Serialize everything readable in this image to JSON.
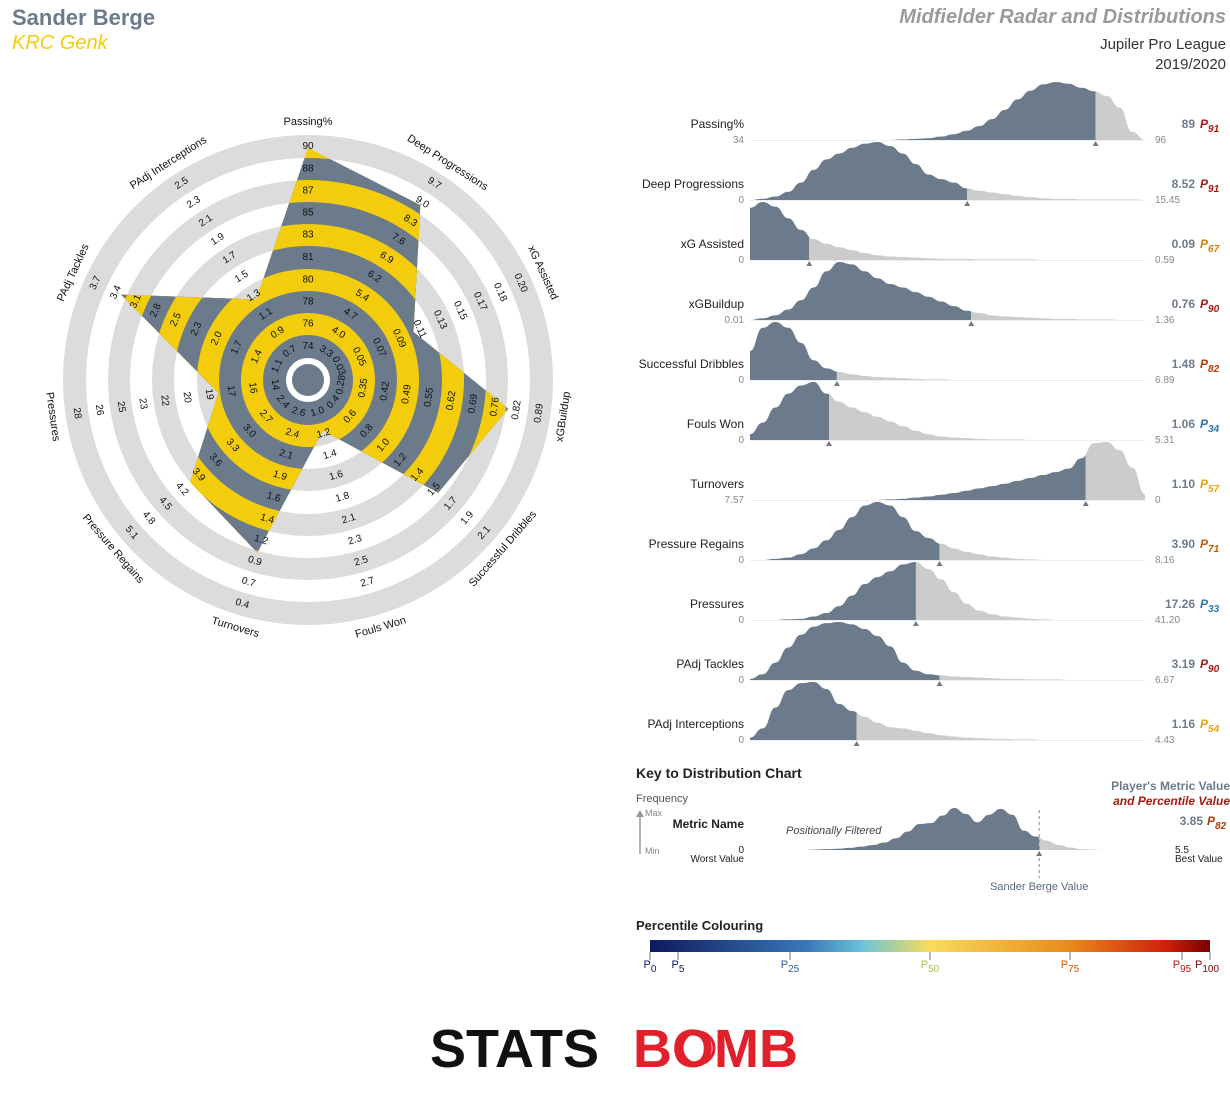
{
  "header": {
    "player_name": "Sander Berge",
    "team_name": "KRC Genk",
    "report_title": "Midfielder Radar and Distributions",
    "league": "Jupiler Pro League",
    "season": "2019/2020"
  },
  "colors": {
    "player_name": "#6b7b8c",
    "team": "#f3cc0c",
    "title": "#9a9a9a",
    "radar_band_gray": "#dcdcdc",
    "radar_yellow": "#f3cc0c",
    "radar_slate": "#6b7b8c",
    "dist_dark": "#6b7b8c",
    "dist_light": "#cccccc",
    "percentile_low": "#0d1a5e",
    "percentile_mid": "#f7dc5c",
    "percentile_high": "#7a0000",
    "logo_black": "#111111",
    "logo_red": "#e0202a"
  },
  "chart_data": [
    {
      "type": "radar",
      "title": "",
      "axes": [
        {
          "name": "Passing%",
          "ticks": [
            "74",
            "76",
            "78",
            "80",
            "81",
            "83",
            "85",
            "87",
            "88",
            "90"
          ],
          "value": 89,
          "scale_min": 72.5,
          "scale_max": 90
        },
        {
          "name": "Deep Progressions",
          "ticks": [
            "3.3",
            "4.0",
            "4.7",
            "5.4",
            "6.2",
            "6.9",
            "7.6",
            "8.3",
            "9.0",
            "9.7"
          ],
          "value": 8.52,
          "scale_min": 2.6,
          "scale_max": 9.7
        },
        {
          "name": "xG Assisted",
          "ticks": [
            "0.03",
            "0.05",
            "0.07",
            "0.09",
            "0.11",
            "0.13",
            "0.15",
            "0.17",
            "0.18",
            "0.20"
          ],
          "value": 0.09,
          "scale_min": 0.01,
          "scale_max": 0.2
        },
        {
          "name": "xGBuildup",
          "ticks": [
            "0.28",
            "0.35",
            "0.42",
            "0.49",
            "0.55",
            "0.62",
            "0.69",
            "0.76",
            "0.82",
            "0.89"
          ],
          "value": 0.76,
          "scale_min": 0.21,
          "scale_max": 0.89
        },
        {
          "name": "Successful Dribbles",
          "ticks": [
            "0.4",
            "0.6",
            "0.8",
            "1.0",
            "1.2",
            "1.4",
            "1.5",
            "1.7",
            "1.9",
            "2.1"
          ],
          "value": 1.48,
          "scale_min": 0.2,
          "scale_max": 2.1
        },
        {
          "name": "Fouls Won",
          "ticks": [
            "1.0",
            "1.2",
            "1.4",
            "1.6",
            "1.8",
            "2.1",
            "2.3",
            "2.5",
            "2.7"
          ],
          "value": 1.06,
          "scale_min": 0.8,
          "scale_max": 2.7
        },
        {
          "name": "Turnovers",
          "ticks": [
            "2.6",
            "2.4",
            "2.1",
            "1.9",
            "1.6",
            "1.4",
            "1.2",
            "0.9",
            "0.7",
            "0.4"
          ],
          "value": 1.1,
          "scale_min": 2.8,
          "scale_max": 0.4
        },
        {
          "name": "Pressure Regains",
          "ticks": [
            "2.4",
            "2.7",
            "3.0",
            "3.3",
            "3.6",
            "3.9",
            "4.2",
            "4.5",
            "4.8",
            "5.1"
          ],
          "value": 3.9,
          "scale_min": 2.1,
          "scale_max": 5.1
        },
        {
          "name": "Pressures",
          "ticks": [
            "14",
            "16",
            "17",
            "19",
            "20",
            "22",
            "23",
            "25",
            "26",
            "28"
          ],
          "value": 17.26,
          "scale_min": 12.5,
          "scale_max": 28
        },
        {
          "name": "PAdj Tackles",
          "ticks": [
            "1.1",
            "1.4",
            "1.7",
            "2.0",
            "2.3",
            "2.5",
            "2.8",
            "3.1",
            "3.4",
            "3.7"
          ],
          "value": 3.19,
          "scale_min": 0.8,
          "scale_max": 3.7
        },
        {
          "name": "PAdj Interceptions",
          "ticks": [
            "0.7",
            "0.9",
            "1.1",
            "1.3",
            "1.5",
            "1.7",
            "1.9",
            "2.1",
            "2.3",
            "2.5"
          ],
          "value": 1.16,
          "scale_min": 0.5,
          "scale_max": 2.5
        }
      ]
    },
    {
      "type": "area",
      "title": "",
      "metrics": [
        {
          "name": "Passing%",
          "min_label": "34",
          "max_label": "96",
          "value_label": "89",
          "percentile": "91",
          "pct_color": "#a41a0c",
          "marker": 0.875,
          "curve": [
            0,
            0,
            0,
            0,
            0,
            0,
            0,
            0,
            0,
            0,
            0,
            0,
            0.01,
            0.02,
            0.03,
            0.06,
            0.1,
            0.16,
            0.24,
            0.36,
            0.52,
            0.7,
            0.85,
            0.96,
            1.0,
            0.97,
            0.9,
            0.84,
            0.76,
            0.56,
            0.14,
            0.0
          ]
        },
        {
          "name": "Deep Progressions",
          "min_label": "0",
          "max_label": "15.45",
          "value_label": "8.52",
          "percentile": "91",
          "pct_color": "#a41a0c",
          "marker": 0.55,
          "curve": [
            0,
            0.02,
            0.06,
            0.14,
            0.3,
            0.52,
            0.7,
            0.8,
            0.9,
            0.97,
            1.0,
            0.93,
            0.8,
            0.62,
            0.44,
            0.36,
            0.3,
            0.2,
            0.16,
            0.13,
            0.1,
            0.07,
            0.05,
            0.03,
            0.02,
            0.02,
            0.01,
            0.01,
            0.01,
            0.01,
            0.01,
            0.0
          ]
        },
        {
          "name": "xG Assisted",
          "min_label": "0",
          "max_label": "0.59",
          "value_label": "0.09",
          "percentile": "67",
          "pct_color": "#d07f0d",
          "marker": 0.15,
          "curve": [
            0.9,
            1.0,
            0.92,
            0.72,
            0.52,
            0.36,
            0.28,
            0.22,
            0.17,
            0.12,
            0.08,
            0.06,
            0.05,
            0.04,
            0.03,
            0.02,
            0.02,
            0.02,
            0.01,
            0.01,
            0.01,
            0.01,
            0.01,
            0.0,
            0.0,
            0.0,
            0.0,
            0.0,
            0.0,
            0.0,
            0.0,
            0.0
          ]
        },
        {
          "name": "xGBuildup",
          "min_label": "0.01",
          "max_label": "1.36",
          "value_label": "0.76",
          "percentile": "90",
          "pct_color": "#a41a0c",
          "marker": 0.56,
          "curve": [
            0,
            0.03,
            0.08,
            0.18,
            0.34,
            0.56,
            0.84,
            1.0,
            0.96,
            0.84,
            0.72,
            0.62,
            0.56,
            0.48,
            0.4,
            0.32,
            0.24,
            0.16,
            0.12,
            0.08,
            0.06,
            0.05,
            0.04,
            0.03,
            0.02,
            0.02,
            0.01,
            0.01,
            0.01,
            0.0,
            0.0,
            0.0
          ]
        },
        {
          "name": "Successful Dribbles",
          "min_label": "0",
          "max_label": "6.89",
          "value_label": "1.48",
          "percentile": "82",
          "pct_color": "#b33a08",
          "marker": 0.22,
          "curve": [
            0.5,
            0.9,
            1.0,
            0.9,
            0.64,
            0.34,
            0.2,
            0.14,
            0.1,
            0.07,
            0.05,
            0.04,
            0.03,
            0.02,
            0.01,
            0.01,
            0.0,
            0.0,
            0.0,
            0.0,
            0.0,
            0.0,
            0.0,
            0.0,
            0.0,
            0.0,
            0.0,
            0.0,
            0.0,
            0.0,
            0.0,
            0.0
          ]
        },
        {
          "name": "Fouls Won",
          "min_label": "0",
          "max_label": "5.31",
          "value_label": "1.06",
          "percentile": "34",
          "pct_color": "#2e75a8",
          "marker": 0.2,
          "curve": [
            0.1,
            0.3,
            0.56,
            0.8,
            0.94,
            1.0,
            0.8,
            0.66,
            0.56,
            0.48,
            0.4,
            0.32,
            0.24,
            0.16,
            0.1,
            0.06,
            0.04,
            0.03,
            0.02,
            0.01,
            0.01,
            0.01,
            0.0,
            0.0,
            0.0,
            0.0,
            0.0,
            0.0,
            0.0,
            0.0,
            0.0,
            0.0
          ]
        },
        {
          "name": "Turnovers",
          "min_label": "7.57",
          "max_label": "0",
          "value_label": "1.10",
          "percentile": "57",
          "pct_color": "#e6a60e",
          "marker": 0.85,
          "curve": [
            0,
            0,
            0,
            0,
            0,
            0,
            0,
            0,
            0,
            0,
            0,
            0.01,
            0.02,
            0.04,
            0.06,
            0.09,
            0.12,
            0.16,
            0.2,
            0.24,
            0.28,
            0.33,
            0.38,
            0.43,
            0.48,
            0.54,
            0.72,
            0.98,
            1.0,
            0.86,
            0.56,
            0.1
          ]
        },
        {
          "name": "Pressure Regains",
          "min_label": "0",
          "max_label": "8.16",
          "value_label": "3.90",
          "percentile": "71",
          "pct_color": "#c45a0a",
          "marker": 0.48,
          "curve": [
            0,
            0,
            0.02,
            0.04,
            0.1,
            0.2,
            0.34,
            0.52,
            0.74,
            0.94,
            1.0,
            0.94,
            0.74,
            0.5,
            0.38,
            0.28,
            0.2,
            0.14,
            0.1,
            0.06,
            0.04,
            0.02,
            0.01,
            0.0,
            0.0,
            0.0,
            0.0,
            0.0,
            0.0,
            0.0,
            0.0,
            0.0
          ]
        },
        {
          "name": "Pressures",
          "min_label": "0",
          "max_label": "41.20",
          "value_label": "17.26",
          "percentile": "33",
          "pct_color": "#2e75a8",
          "marker": 0.42,
          "curve": [
            0,
            0,
            0,
            0.01,
            0.02,
            0.06,
            0.12,
            0.24,
            0.42,
            0.62,
            0.74,
            0.84,
            0.96,
            1.0,
            0.88,
            0.7,
            0.48,
            0.28,
            0.16,
            0.1,
            0.06,
            0.04,
            0.02,
            0.01,
            0.0,
            0.0,
            0.0,
            0.0,
            0.0,
            0.0,
            0.0,
            0.0
          ]
        },
        {
          "name": "PAdj Tackles",
          "min_label": "0",
          "max_label": "6.67",
          "value_label": "3.19",
          "percentile": "90",
          "pct_color": "#a41a0c",
          "marker": 0.48,
          "curve": [
            0.02,
            0.1,
            0.3,
            0.56,
            0.78,
            0.92,
            0.98,
            1.0,
            0.96,
            0.88,
            0.76,
            0.58,
            0.3,
            0.16,
            0.1,
            0.08,
            0.06,
            0.05,
            0.04,
            0.03,
            0.02,
            0.02,
            0.01,
            0.01,
            0.01,
            0.0,
            0.0,
            0.0,
            0.0,
            0.0,
            0.0,
            0.0
          ]
        },
        {
          "name": "PAdj Interceptions",
          "min_label": "0",
          "max_label": "4.43",
          "value_label": "1.16",
          "percentile": "54",
          "pct_color": "#e6a60e",
          "marker": 0.27,
          "curve": [
            0.04,
            0.2,
            0.56,
            0.86,
            0.98,
            1.0,
            0.88,
            0.62,
            0.5,
            0.4,
            0.3,
            0.22,
            0.2,
            0.16,
            0.12,
            0.08,
            0.06,
            0.04,
            0.03,
            0.02,
            0.02,
            0.01,
            0.01,
            0.0,
            0.0,
            0.0,
            0.0,
            0.0,
            0.0,
            0.0,
            0.0,
            0.0
          ]
        }
      ]
    }
  ],
  "key": {
    "title": "Key to Distribution Chart",
    "frequency_label": "Frequency",
    "max_label": "Max",
    "min_label": "Min",
    "metric_label": "Metric Name",
    "filter_label": "Positionally Filtered",
    "worst_value": "0",
    "worst_label": "Worst Value",
    "best_value": "5.5",
    "best_label": "Best Value",
    "player_value_label": "Sander Berge Value",
    "legend_line1": "Player's Metric Value",
    "legend_line2": "and Percentile Value",
    "example_value": "3.85",
    "example_percentile": "82",
    "example_curve": [
      0,
      0,
      0,
      0.01,
      0.02,
      0.03,
      0.05,
      0.08,
      0.12,
      0.18,
      0.28,
      0.44,
      0.62,
      0.64,
      0.82,
      1.0,
      0.86,
      0.66,
      0.84,
      0.98,
      0.84,
      0.46,
      0.32,
      0.22,
      0.12,
      0.06,
      0.02,
      0.01,
      0.0,
      0.0,
      0.0,
      0.0
    ],
    "example_marker": 0.72
  },
  "percentile_legend": {
    "title": "Percentile Colouring",
    "ticks": [
      {
        "label": "0",
        "value": 0
      },
      {
        "label": "5",
        "value": 5
      },
      {
        "label": "25",
        "value": 25
      },
      {
        "label": "50",
        "value": 50
      },
      {
        "label": "75",
        "value": 75
      },
      {
        "label": "95",
        "value": 95
      },
      {
        "label": "100",
        "value": 100
      }
    ],
    "prefix": "P"
  },
  "logo": {
    "text_left": "STATS",
    "text_right": "BOMB"
  }
}
